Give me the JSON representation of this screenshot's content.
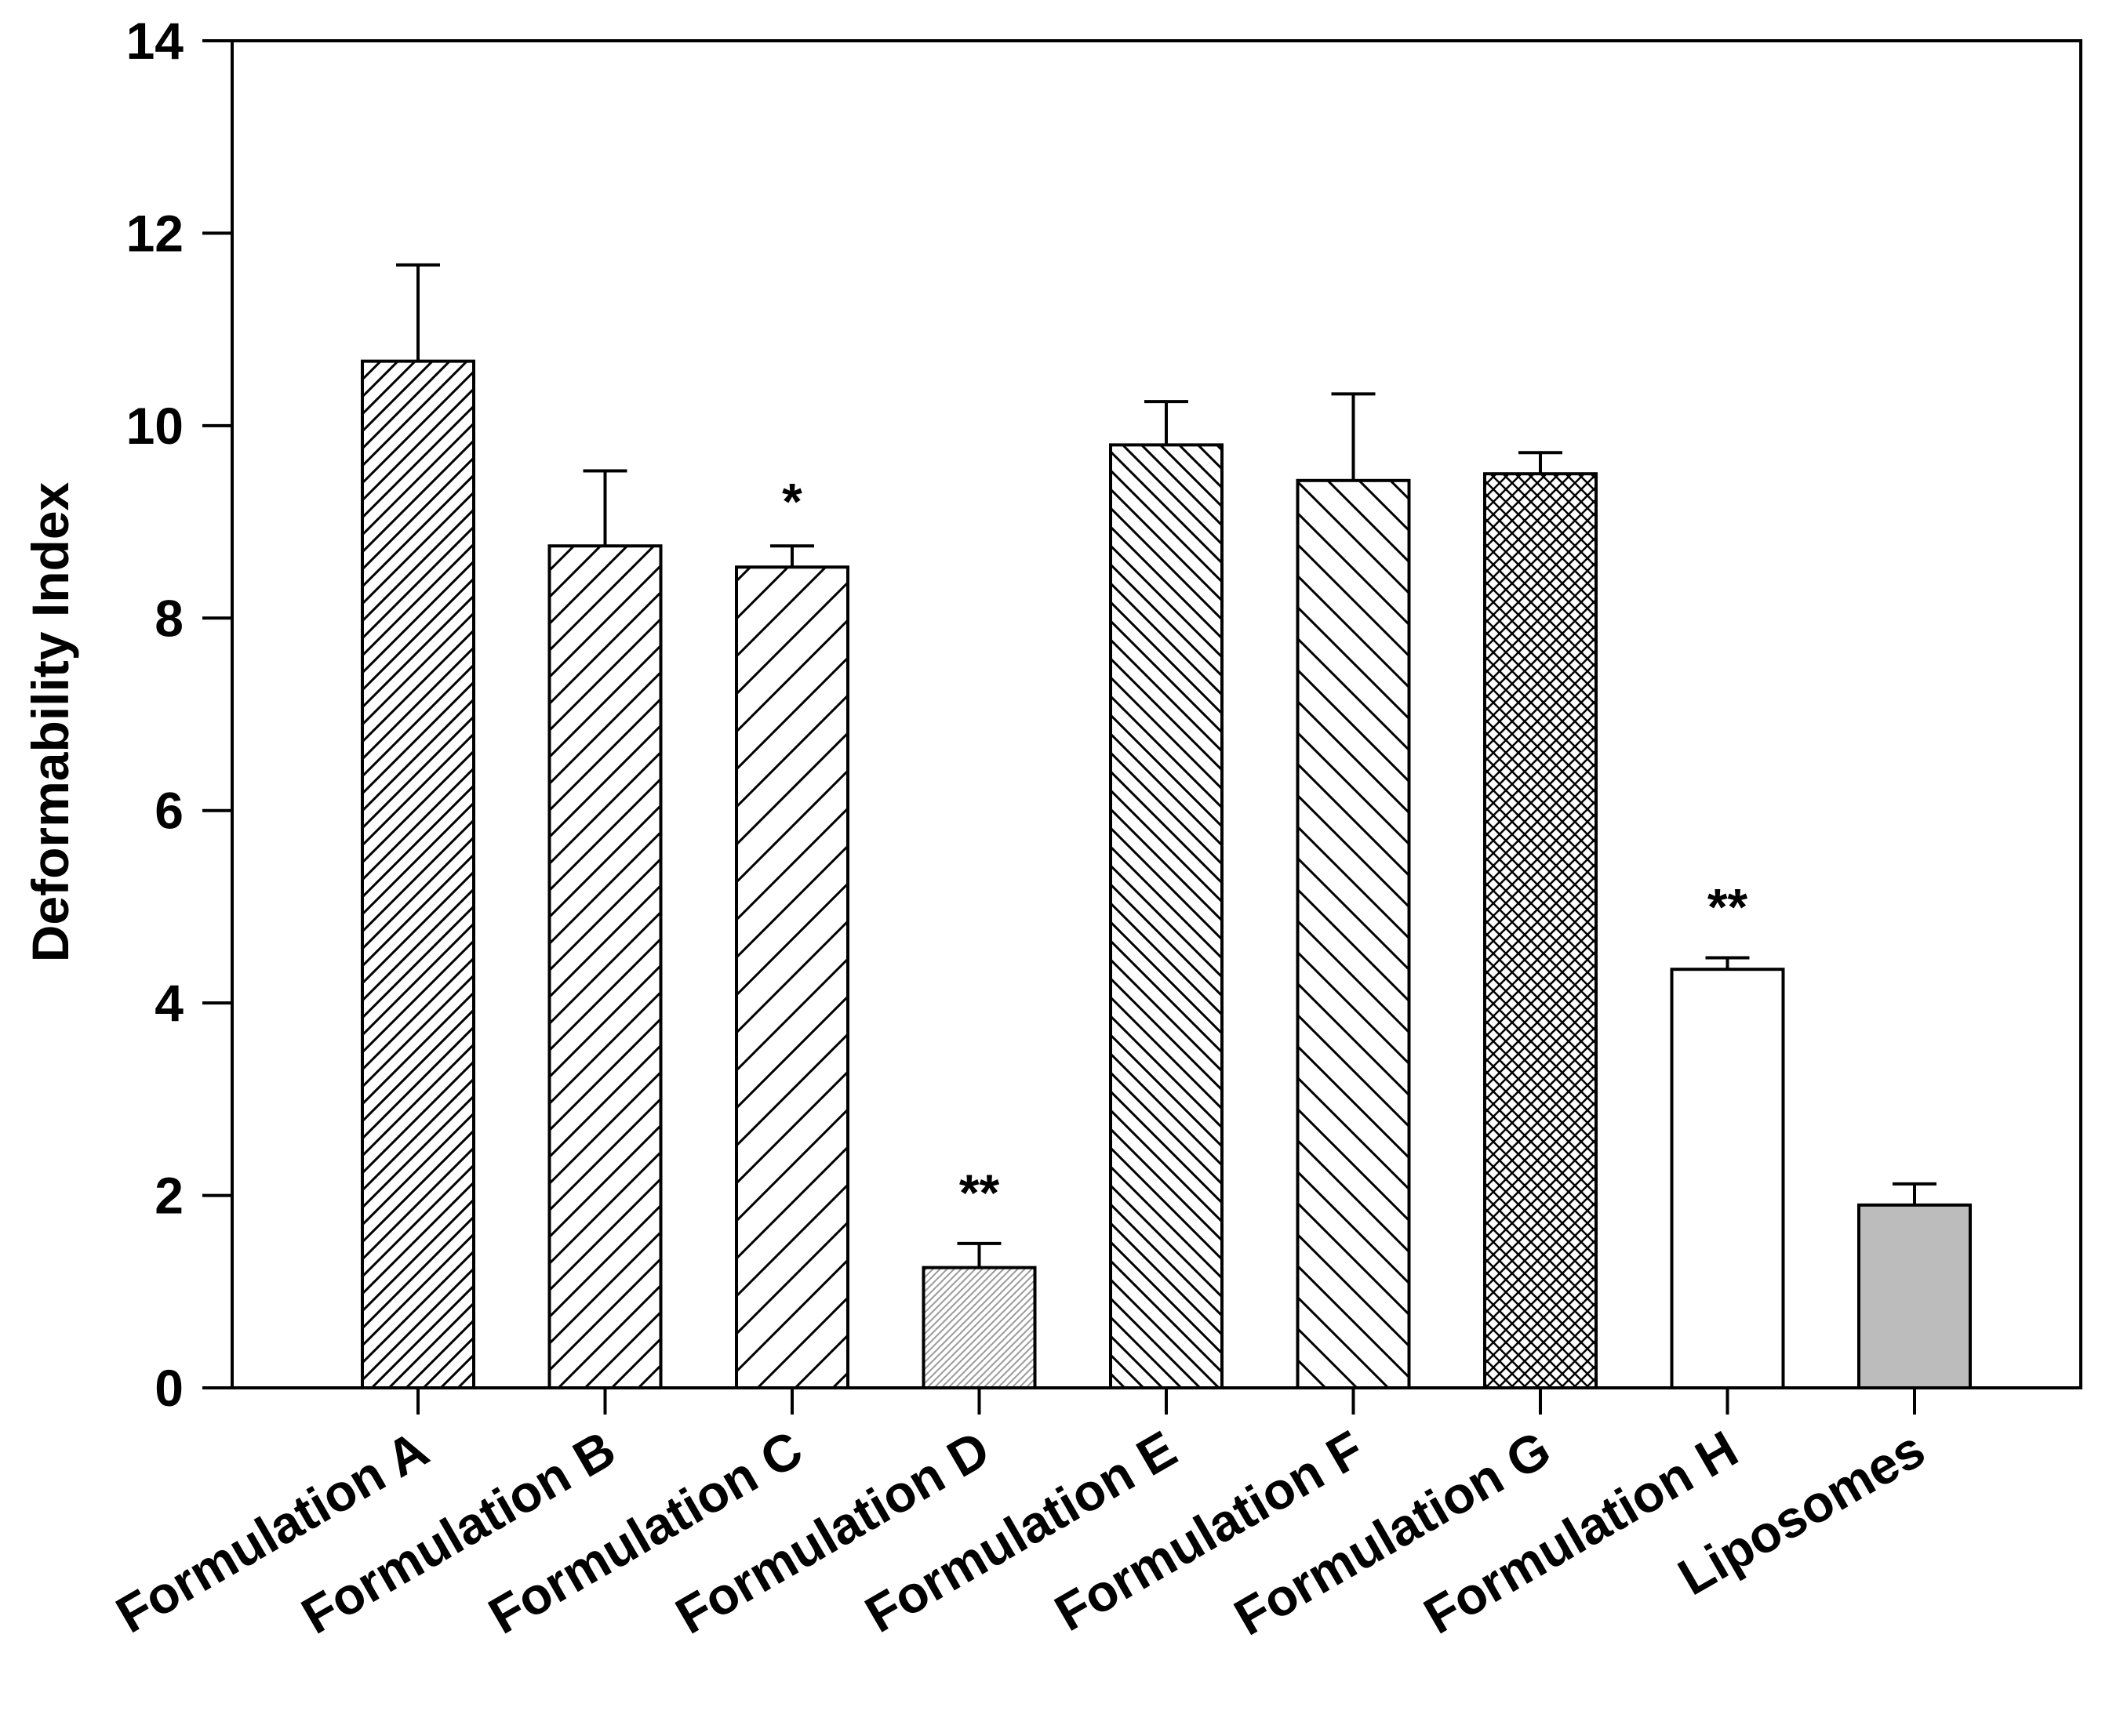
{
  "chart_data": {
    "type": "bar",
    "title": "",
    "xlabel": "",
    "ylabel": "Deformability Index",
    "ylim": [
      0,
      14
    ],
    "yticks": [
      "0",
      "2",
      "4",
      "6",
      "8",
      "10",
      "12",
      "14"
    ],
    "grid": false,
    "categories": [
      "Formulation A",
      "Formulation B",
      "Formulation C",
      "Formulation  D",
      "Formulation E",
      "Formulation F",
      "Formulation G",
      "Formulation H",
      "Liposomes"
    ],
    "values": [
      10.67,
      8.75,
      8.53,
      1.25,
      9.8,
      9.43,
      9.5,
      4.35,
      1.9
    ],
    "errors": [
      1.0,
      0.78,
      0.22,
      0.25,
      0.45,
      0.9,
      0.22,
      0.12,
      0.22
    ],
    "significance": [
      "",
      "",
      "*",
      "**",
      "",
      "",
      "",
      "**",
      ""
    ],
    "fills": [
      "hatch-dense-forward",
      "hatch-forward",
      "hatch-forward-wide",
      "stipple-fine",
      "hatch-dense-back",
      "hatch-back",
      "crosshatch",
      "solid-white",
      "solid-gray"
    ],
    "colors": {
      "axis": "#000000",
      "bar_edge": "#000000",
      "liposome_fill": "#bcbcbc",
      "stipple": "#9a9a9a"
    }
  }
}
